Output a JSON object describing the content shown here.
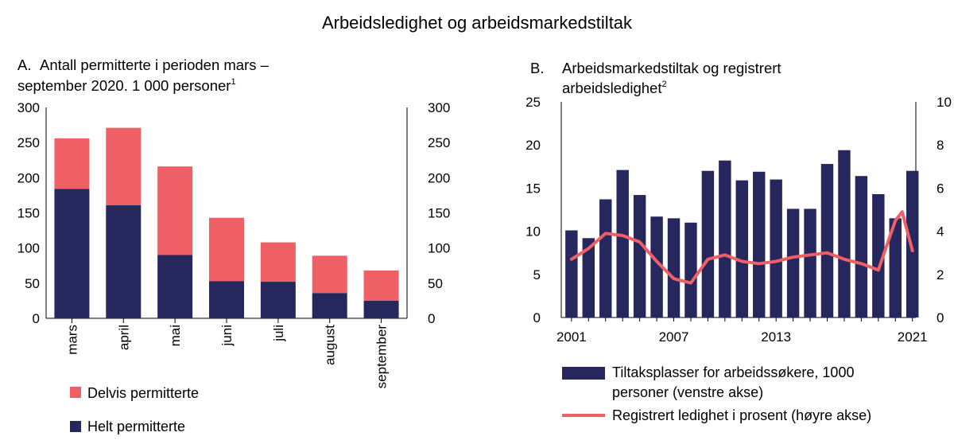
{
  "figure_title": "Arbeidsledighet og arbeidsmarkedstiltak",
  "colors": {
    "navy": "#26275c",
    "salmon": "#ef5f66",
    "axis": "#000000"
  },
  "chart_data": [
    {
      "type": "bar",
      "stacked": true,
      "panel_letter": "A.",
      "title_line1": "Antall permitterte i perioden mars –",
      "title_line2": "september 2020. 1 000 personer",
      "footnote_mark": "1",
      "categories": [
        "mars",
        "april",
        "mai",
        "juni",
        "juli",
        "august",
        "september"
      ],
      "series": [
        {
          "name": "Helt permitterte",
          "color": "#26275c",
          "values": [
            184,
            161,
            90,
            53,
            52,
            36,
            25
          ]
        },
        {
          "name": "Delvis permitterte",
          "color": "#ef5f66",
          "values": [
            72,
            110,
            126,
            90,
            56,
            53,
            43
          ]
        }
      ],
      "ylim": [
        0,
        300
      ],
      "y_ticks": [
        "0",
        "50",
        "100",
        "150",
        "200",
        "250",
        "300"
      ],
      "legend_position": "bottom-left",
      "grid": false
    },
    {
      "type": "bar+line",
      "panel_letter": "B.",
      "title_line1": "Arbeidsmarkedstiltak og registrert",
      "title_line2": "arbeidsledighet",
      "footnote_mark": "2",
      "x": [
        2001,
        2002,
        2003,
        2004,
        2005,
        2006,
        2007,
        2008,
        2009,
        2010,
        2011,
        2012,
        2013,
        2014,
        2015,
        2016,
        2017,
        2018,
        2019,
        2020,
        2021
      ],
      "x_ticks": [
        "2001",
        "2007",
        "2013",
        "2021"
      ],
      "bar_series": {
        "name": "Tiltaksplasser for arbeidssøkere, 1000 personer (venstre akse)",
        "legend_line1": "Tiltaksplasser for arbeidssøkere, 1000",
        "legend_line2": "personer (venstre akse)",
        "axis": "left",
        "color": "#26275c",
        "values": [
          10.1,
          9.2,
          13.7,
          17.1,
          14.2,
          11.7,
          11.5,
          11.0,
          17.0,
          18.2,
          15.9,
          16.9,
          16.0,
          12.6,
          12.6,
          17.8,
          19.4,
          16.4,
          14.3,
          11.5,
          17.0
        ]
      },
      "line_series": {
        "name": "Registrert ledighet i prosent (høyre akse)",
        "axis": "right",
        "color": "#ef5f66",
        "x": [
          2001,
          2002,
          2003,
          2004,
          2005,
          2006,
          2007,
          2007.5,
          2008,
          2009,
          2010,
          2011,
          2012,
          2013,
          2014,
          2015,
          2016,
          2017,
          2018,
          2019,
          2020,
          2020.4,
          2021
        ],
        "values": [
          2.7,
          3.2,
          3.9,
          3.8,
          3.5,
          2.6,
          1.8,
          1.7,
          1.6,
          2.7,
          2.9,
          2.6,
          2.5,
          2.6,
          2.8,
          2.9,
          3.0,
          2.7,
          2.5,
          2.2,
          4.5,
          4.9,
          3.1
        ]
      },
      "ylim_left": [
        0,
        25
      ],
      "y_ticks_left": [
        "0",
        "5",
        "10",
        "15",
        "20",
        "25"
      ],
      "ylim_right": [
        0,
        10
      ],
      "y_ticks_right": [
        "0",
        "2",
        "4",
        "6",
        "8",
        "10"
      ],
      "legend_position": "bottom",
      "grid": false
    }
  ]
}
